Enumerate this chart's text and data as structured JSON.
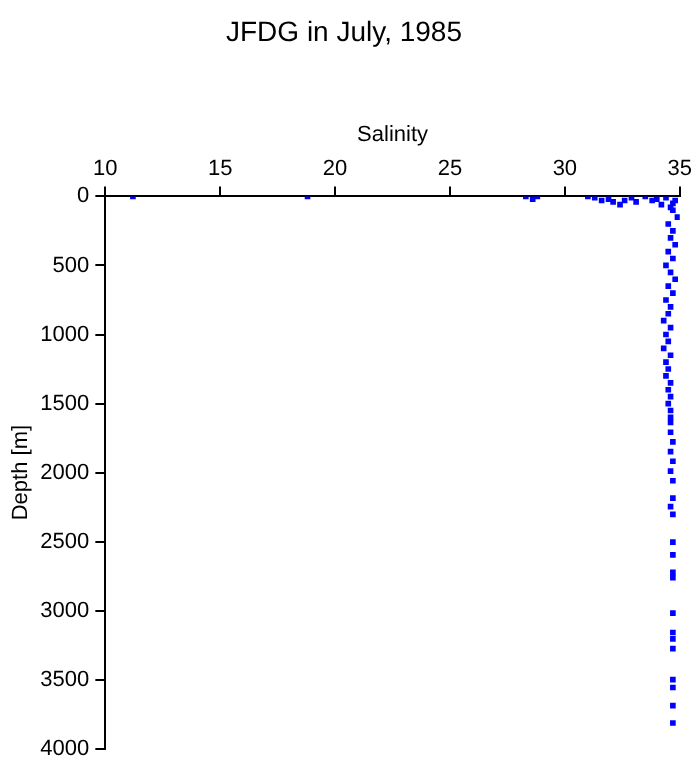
{
  "chart_data": {
    "type": "scatter",
    "title": "JFDG in July, 1985",
    "xlabel": "Salinity",
    "ylabel": "Depth [m]",
    "xlim": [
      10,
      35
    ],
    "xticks": [
      10,
      15,
      20,
      25,
      30,
      35
    ],
    "ylim": [
      4000,
      0
    ],
    "yticks": [
      0,
      500,
      1000,
      1500,
      2000,
      2500,
      3000,
      3500,
      4000
    ],
    "grid": false,
    "legend": false,
    "marker": "square",
    "series": [
      {
        "color": "#0000ff",
        "x": [
          11.2,
          18.8,
          28.3,
          28.6,
          28.8,
          31.0,
          31.3,
          31.6,
          31.9,
          32.1,
          32.4,
          32.6,
          32.9,
          33.1,
          33.5,
          33.8,
          34.0,
          34.2,
          34.4,
          34.6,
          34.8,
          34.9,
          34.5,
          34.7,
          34.6,
          34.8,
          34.5,
          34.7,
          34.4,
          34.6,
          34.8,
          34.5,
          34.7,
          34.4,
          34.6,
          34.5,
          34.3,
          34.6,
          34.4,
          34.5,
          34.3,
          34.6,
          34.4,
          34.5,
          34.4,
          34.6,
          34.5,
          34.6,
          34.5,
          34.6,
          34.6,
          34.6,
          34.6,
          34.7,
          34.6,
          34.7,
          34.6,
          34.7,
          34.7,
          34.6,
          34.7,
          34.7,
          34.7,
          34.7,
          34.7,
          34.7,
          34.7,
          34.7,
          34.7,
          34.7,
          34.7,
          34.7,
          34.7,
          34.7,
          34.7
        ],
        "values": [
          0,
          0,
          0,
          20,
          0,
          0,
          10,
          30,
          20,
          40,
          60,
          30,
          10,
          40,
          0,
          30,
          20,
          60,
          10,
          80,
          30,
          150,
          200,
          250,
          300,
          350,
          400,
          450,
          500,
          550,
          600,
          650,
          700,
          750,
          800,
          850,
          900,
          950,
          1000,
          1050,
          1100,
          1150,
          1200,
          1250,
          1300,
          1350,
          1400,
          1450,
          1500,
          1550,
          1600,
          1637,
          1708,
          1778,
          1848,
          1918,
          1989,
          2059,
          2185,
          2246,
          2302,
          2503,
          2596,
          2723,
          2760,
          3018,
          3158,
          3204,
          3275,
          3499,
          3556,
          3687,
          3813,
          100,
          50
        ]
      }
    ]
  }
}
